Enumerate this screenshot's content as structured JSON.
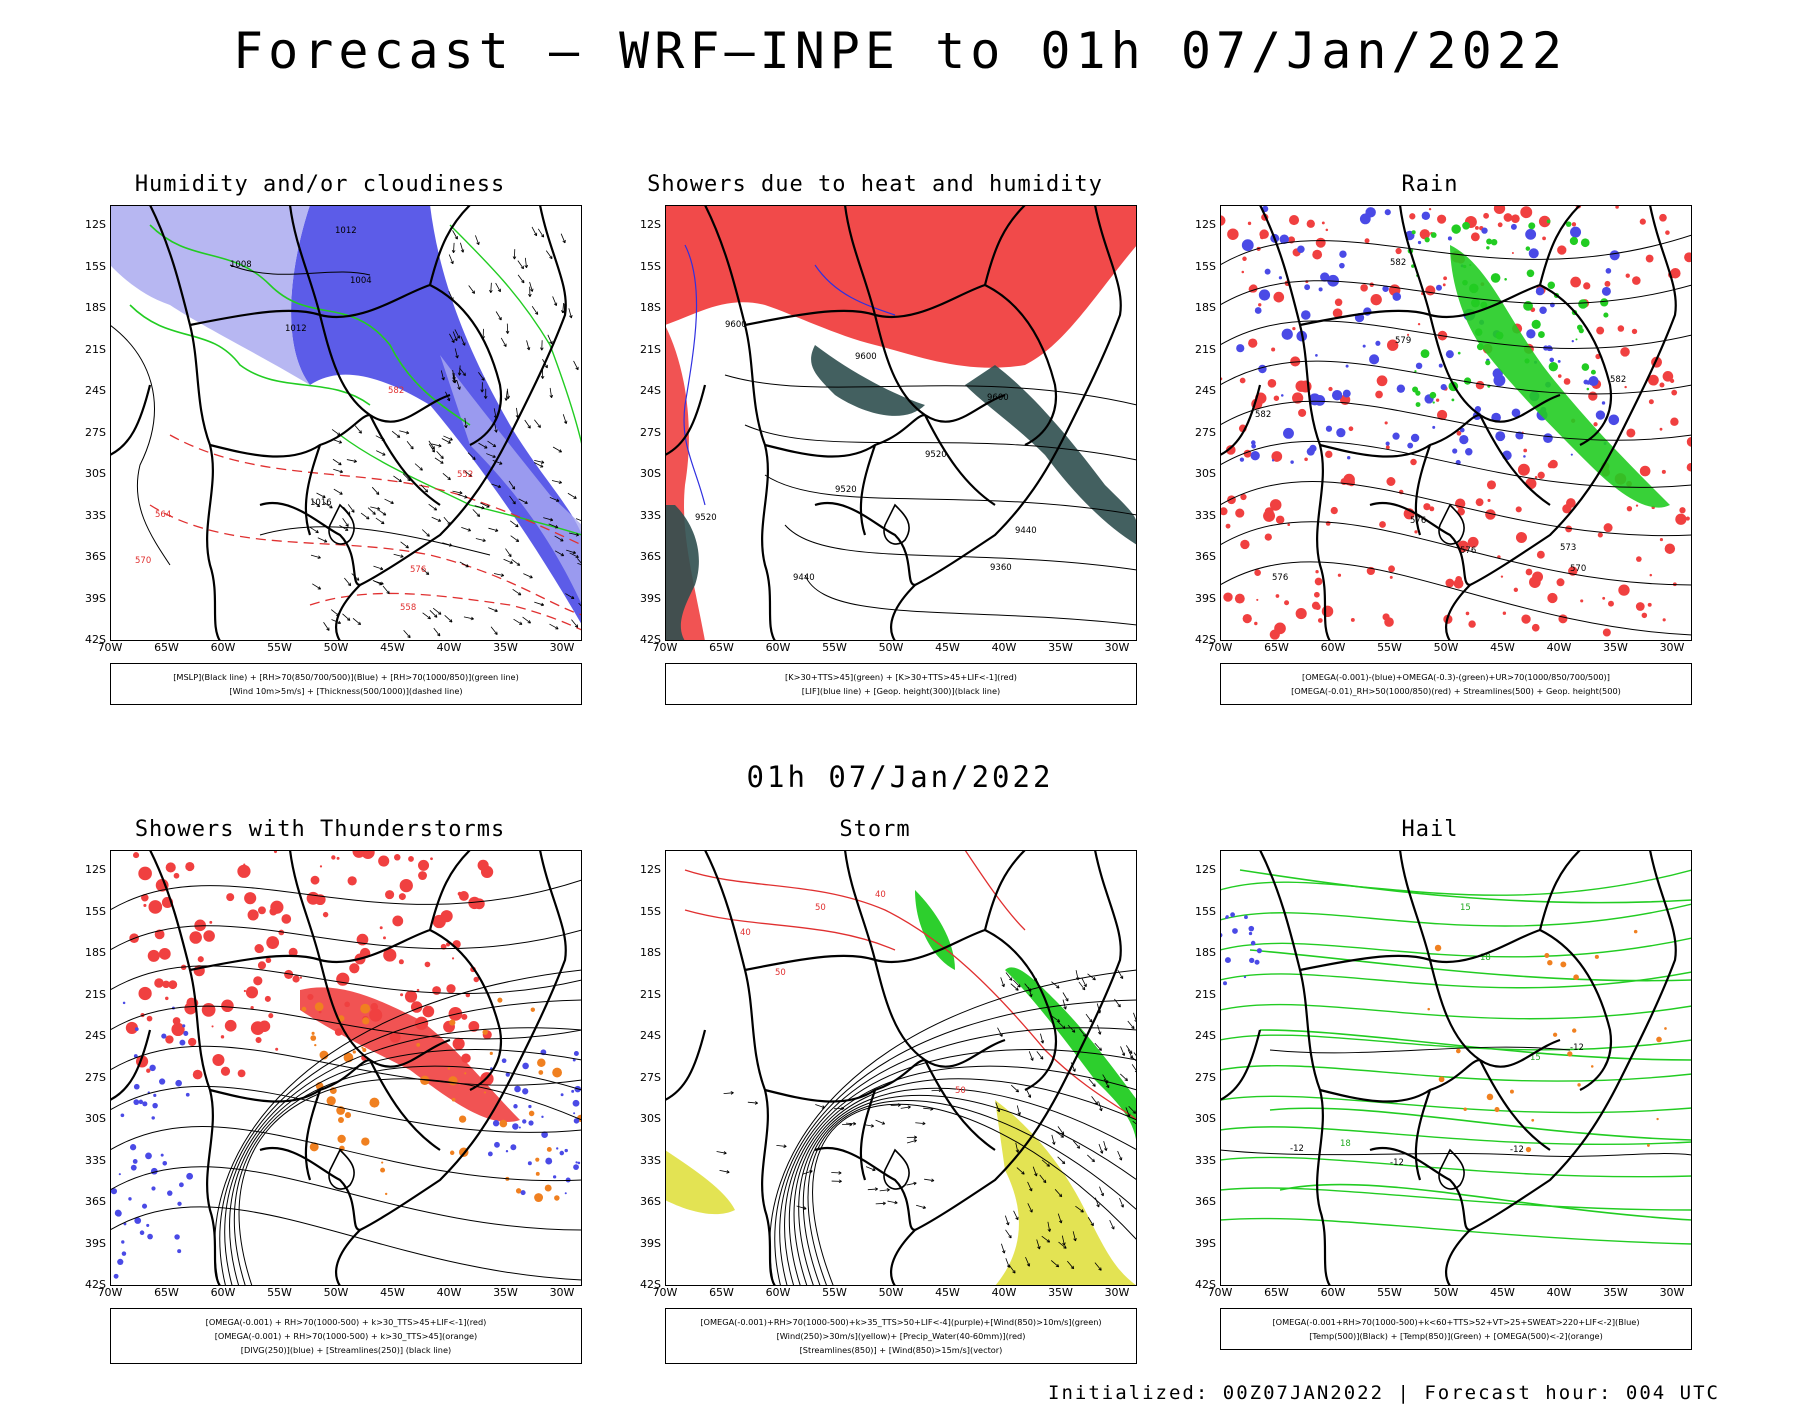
{
  "title": "Forecast – WRF–INPE to 01h 07/Jan/2022",
  "mid_title": "01h 07/Jan/2022",
  "footer": "Initialized: 00Z07JAN2022 | Forecast hour: 004 UTC",
  "lat_labels": [
    "12S",
    "15S",
    "18S",
    "21S",
    "24S",
    "27S",
    "30S",
    "33S",
    "36S",
    "39S",
    "42S"
  ],
  "lon_labels": [
    "70W",
    "65W",
    "60W",
    "55W",
    "50W",
    "45W",
    "40W",
    "35W",
    "30W"
  ],
  "colors": {
    "blue": "#4a4ae6",
    "light_blue": "#aaaaf0",
    "green": "#22cc22",
    "red": "#f04040",
    "dark_teal": "#2f4f4f",
    "orange": "#f08020",
    "yellow": "#e0e040"
  },
  "panels": [
    {
      "title": "Humidity and/or cloudiness",
      "legend": [
        "[MSLP](Black line) + [RH>70(850/700/500)](Blue) + [RH>70(1000/850)](green line)",
        "[Wind 10m>5m/s] + [Thickness(500/1000)](dashed line)"
      ],
      "contour_labels": [
        "1012",
        "1008",
        "1004",
        "1012",
        "1016",
        "558",
        "552",
        "570",
        "576",
        "582",
        "564"
      ]
    },
    {
      "title": "Showers due to heat and humidity",
      "legend": [
        "[K>30+TTS>45](green) + [K>30+TTS>45+LIF<-1](red)",
        "[LIF](blue line) + [Geop. height(300)](black line)"
      ],
      "contour_labels": [
        "9600",
        "9600",
        "9600",
        "9520",
        "9520",
        "9520",
        "9440",
        "9440",
        "9360"
      ]
    },
    {
      "title": "Rain",
      "legend": [
        "[OMEGA(-0.001)-(blue)+OMEGA(-0.3)-(green)+UR>70(1000/850/700/500)]",
        "[OMEGA(-0.01)_RH>50(1000/850)(red) + Streamlines(500) + Geop. height(500)"
      ],
      "contour_labels": [
        "582",
        "582",
        "579",
        "576",
        "576",
        "573",
        "570",
        "582",
        "576"
      ]
    },
    {
      "title": "Showers with Thunderstorms",
      "legend": [
        "[OMEGA(-0.001) + RH>70(1000-500) + k>30_TTS>45+LIF<-1](red)",
        "[OMEGA(-0.001) + RH>70(1000-500) + k>30_TTS>45](orange)",
        "[DIVG(250)](blue) + [Streamlines(250)] (black line)"
      ],
      "contour_labels": []
    },
    {
      "title": "Storm",
      "legend": [
        "[OMEGA(-0.001)+RH>70(1000-500)+k>35_TTS>50+LIF<-4](purple)+[Wind(850)>10m/s](green)",
        "[Wind(250)>30m/s](yellow)+ [Precip_Water(40-60mm)](red)",
        "[Streamlines(850)] + [Wind(850)>15m/s](vector)"
      ],
      "contour_labels": [
        "40",
        "50",
        "50",
        "40",
        "50"
      ]
    },
    {
      "title": "Hail",
      "legend": [
        "[OMEGA(-0.001+RH>70(1000-500)+k<60+TTS>52+VT>25+SWEAT>220+LIF<-2](Blue)",
        "[Temp(500)](Black) + [Temp(850)](Green) + [OMEGA(500)<-2](orange)"
      ],
      "contour_labels": [
        "-12",
        "-12",
        "-12",
        "-12",
        "15",
        "15",
        "18",
        "18"
      ]
    }
  ]
}
